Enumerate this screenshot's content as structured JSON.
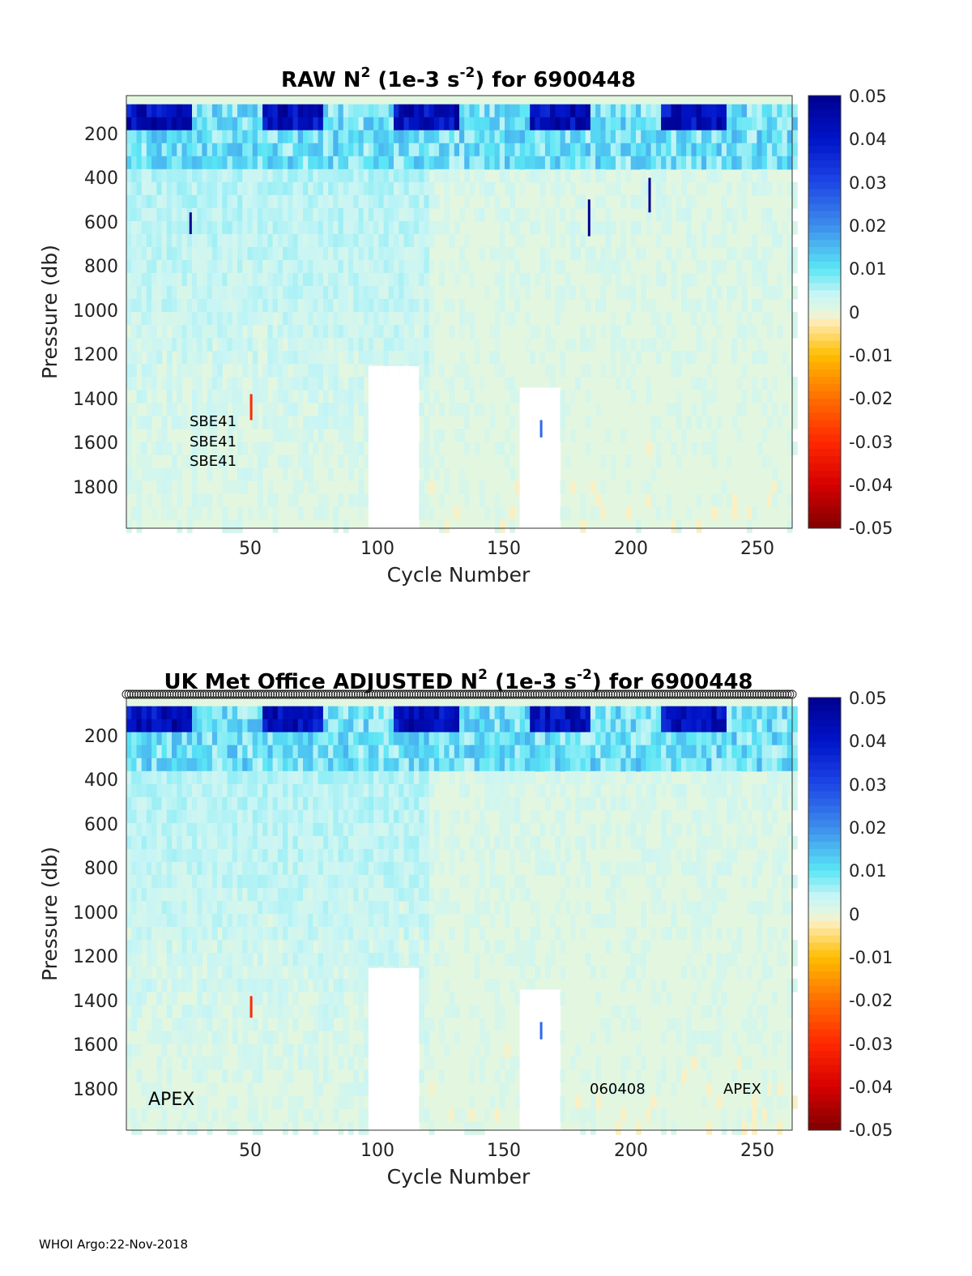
{
  "chart_data": [
    {
      "type": "heatmap",
      "title": {
        "pre": "RAW N",
        "sup1": "2",
        "mid": " (1e-3 s",
        "sup2": "-2",
        "post": ") for 6900448"
      },
      "xlabel": "Cycle Number",
      "ylabel": "Pressure (db)",
      "xlim": [
        1,
        265
      ],
      "ylim": [
        2000,
        0
      ],
      "xticks": [
        "50",
        "100",
        "150",
        "200",
        "250"
      ],
      "yticks": [
        "200",
        "400",
        "600",
        "800",
        "1000",
        "1200",
        "1400",
        "1600",
        "1800"
      ],
      "colorbar": {
        "min": -0.05,
        "max": 0.05,
        "ticks": [
          "0.05",
          "0.04",
          "0.03",
          "0.02",
          "0.01",
          "0",
          "-0.01",
          "-0.02",
          "-0.03",
          "-0.04",
          "-0.05"
        ]
      },
      "annotations": [
        "SBE41",
        "SBE41",
        "SBE41"
      ],
      "spikes": [
        {
          "cycle": 26,
          "p_from": 540,
          "p_to": 640,
          "value": 0.05
        },
        {
          "cycle": 184,
          "p_from": 480,
          "p_to": 650,
          "value": 0.05
        },
        {
          "cycle": 208,
          "p_from": 380,
          "p_to": 540,
          "value": 0.05
        },
        {
          "cycle": 50,
          "p_from": 1380,
          "p_to": 1500,
          "value": -0.03
        },
        {
          "cycle": 165,
          "p_from": 1500,
          "p_to": 1580,
          "value": 0.025
        }
      ]
    },
    {
      "type": "heatmap",
      "title": {
        "pre": "UK Met Office  ADJUSTED N",
        "sup1": "2",
        "mid": " (1e-3 s",
        "sup2": "-2",
        "post": ") for 6900448"
      },
      "xlabel": "Cycle Number",
      "ylabel": "Pressure (db)",
      "xlim": [
        1,
        265
      ],
      "ylim": [
        2000,
        0
      ],
      "xticks": [
        "50",
        "100",
        "150",
        "200",
        "250"
      ],
      "yticks": [
        "200",
        "400",
        "600",
        "800",
        "1000",
        "1200",
        "1400",
        "1600",
        "1800"
      ],
      "colorbar": {
        "min": -0.05,
        "max": 0.05,
        "ticks": [
          "0.05",
          "0.04",
          "0.03",
          "0.02",
          "0.01",
          "0",
          "-0.01",
          "-0.02",
          "-0.03",
          "-0.04",
          "-0.05"
        ]
      },
      "annotations": [
        "APEX",
        "060408",
        "APEX"
      ],
      "spikes": [
        {
          "cycle": 50,
          "p_from": 1380,
          "p_to": 1480,
          "value": -0.03
        },
        {
          "cycle": 165,
          "p_from": 1500,
          "p_to": 1580,
          "value": 0.025
        }
      ]
    }
  ],
  "footer": "WHOI Argo:22-Nov-2018",
  "colors": {
    "positive_max": "#00008f",
    "zero": "#e3f7e0",
    "negative_max": "#800000"
  }
}
